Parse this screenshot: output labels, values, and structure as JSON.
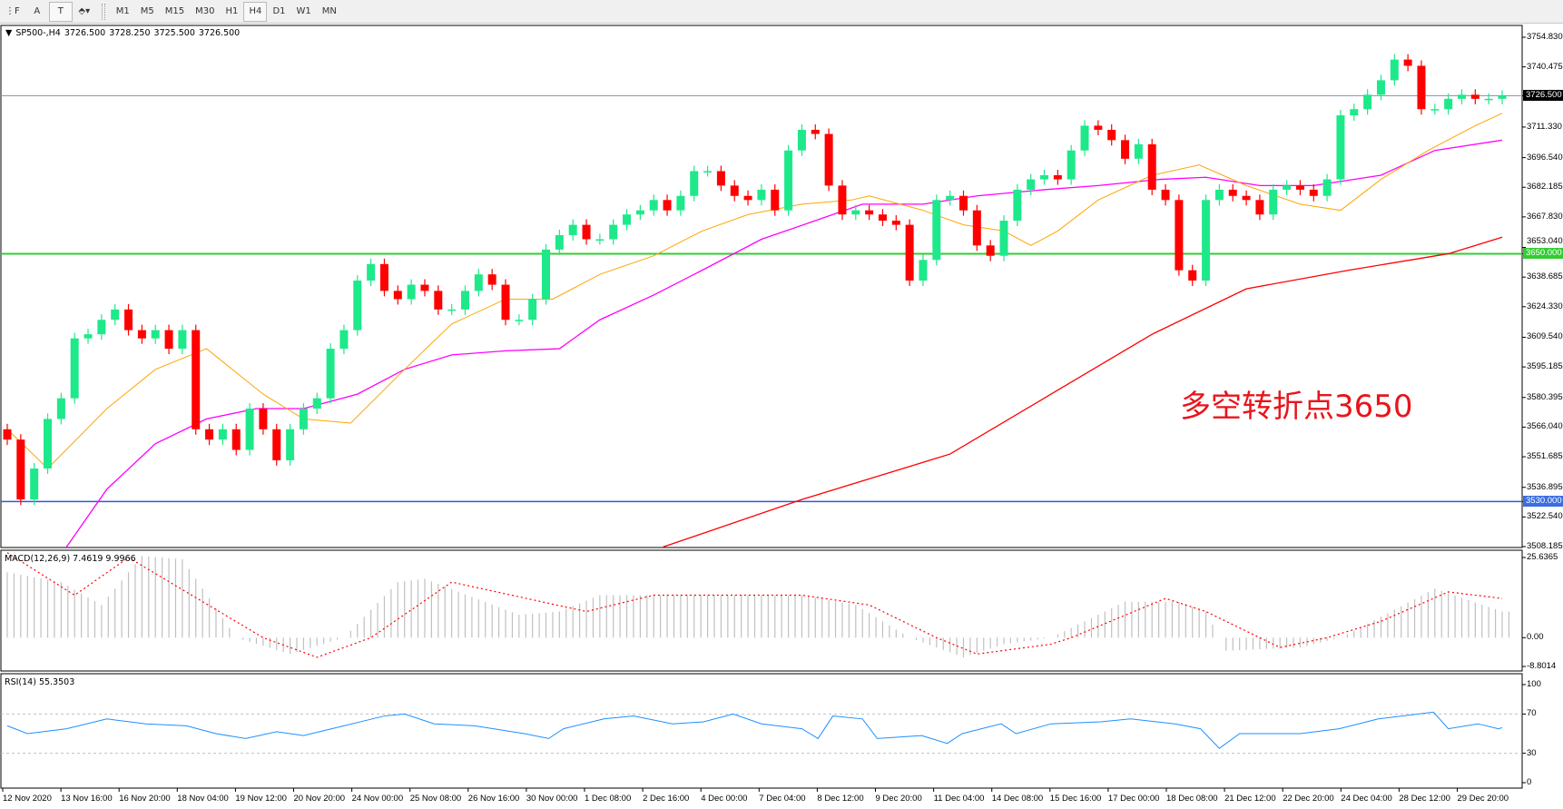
{
  "toolbar": {
    "tools": [
      {
        "icon": "period-separator-icon",
        "label": "⋮F"
      },
      {
        "icon": "text-icon",
        "label": "A"
      },
      {
        "icon": "text-label-icon",
        "label": "T"
      },
      {
        "icon": "arrows-icon",
        "label": "⬘▾"
      }
    ],
    "timeframes": [
      "M1",
      "M5",
      "M15",
      "M30",
      "H1",
      "H4",
      "D1",
      "W1",
      "MN"
    ],
    "active_timeframe": "H4"
  },
  "legend": {
    "symbol": "SP500-,H4",
    "open": "3726.500",
    "high": "3728.250",
    "low": "3725.500",
    "close": "3726.500"
  },
  "annotation": "多空转折点3650",
  "colors": {
    "bull": "#1de98b",
    "bear": "#ff0000",
    "ma_fast": "#ffa500",
    "ma_mid": "#ff00ff",
    "ma_slow": "#ff0000",
    "support_line": "#33cc33",
    "lower_line": "#3355dd",
    "price_line": "#8090a8",
    "macd_hist": "#c0c0c0",
    "macd_signal": "#ff0000",
    "rsi": "#1e90ff"
  },
  "price_axis": {
    "ticks": [
      "3754.830",
      "3740.475",
      "3711.330",
      "3696.540",
      "3682.185",
      "3667.830",
      "3653.040",
      "3638.685",
      "3624.330",
      "3609.540",
      "3595.185",
      "3580.395",
      "3566.040",
      "3551.685",
      "3536.895",
      "3522.540",
      "3508.185"
    ],
    "current": "3726.500",
    "support": "3650.000",
    "lower": "3530.000"
  },
  "time_axis": [
    "12 Nov 2020",
    "13 Nov 16:00",
    "16 Nov 20:00",
    "18 Nov 04:00",
    "19 Nov 12:00",
    "20 Nov 20:00",
    "24 Nov 00:00",
    "25 Nov 08:00",
    "26 Nov 16:00",
    "30 Nov 00:00",
    "1 Dec 08:00",
    "2 Dec 16:00",
    "4 Dec 00:00",
    "7 Dec 04:00",
    "8 Dec 12:00",
    "9 Dec 20:00",
    "11 Dec 04:00",
    "14 Dec 08:00",
    "15 Dec 16:00",
    "17 Dec 00:00",
    "18 Dec 08:00",
    "21 Dec 12:00",
    "22 Dec 20:00",
    "24 Dec 04:00",
    "28 Dec 12:00",
    "29 Dec 20:00"
  ],
  "chart_data": {
    "type": "candlestick",
    "ylim": [
      3508.185,
      3754.83
    ],
    "first_open": 3565,
    "close": [
      3560,
      3531,
      3546,
      3570,
      3580,
      3609,
      3611,
      3618,
      3623,
      3613,
      3609,
      3613,
      3604,
      3613,
      3565,
      3560,
      3565,
      3555,
      3575,
      3565,
      3550,
      3565,
      3575,
      3580,
      3604,
      3613,
      3637,
      3645,
      3632,
      3628,
      3635,
      3632,
      3623,
      3623,
      3632,
      3640,
      3635,
      3618,
      3618,
      3628,
      3652,
      3659,
      3664,
      3657,
      3657,
      3664,
      3669,
      3671,
      3676,
      3671,
      3678,
      3690,
      3690,
      3683,
      3678,
      3676,
      3681,
      3671,
      3700,
      3710,
      3708,
      3683,
      3669,
      3671,
      3669,
      3666,
      3664,
      3637,
      3647,
      3676,
      3678,
      3671,
      3654,
      3649,
      3666,
      3681,
      3686,
      3688,
      3686,
      3700,
      3712,
      3710,
      3705,
      3696,
      3703,
      3681,
      3676,
      3642,
      3637,
      3676,
      3681,
      3678,
      3676,
      3669,
      3681,
      3683,
      3681,
      3678,
      3686,
      3717,
      3720,
      3727,
      3734,
      3744,
      3741,
      3720,
      3720,
      3725,
      3727,
      3725,
      3725,
      3726.5
    ],
    "ma_fast": [
      [
        0,
        3565
      ],
      [
        3,
        3546
      ],
      [
        7.4,
        3575
      ],
      [
        11,
        3594
      ],
      [
        14.8,
        3604
      ],
      [
        19,
        3582
      ],
      [
        22,
        3570
      ],
      [
        25.5,
        3568
      ],
      [
        29.5,
        3594
      ],
      [
        33,
        3616
      ],
      [
        37,
        3628
      ],
      [
        40.5,
        3628
      ],
      [
        44,
        3640
      ],
      [
        48,
        3649
      ],
      [
        51.6,
        3661
      ],
      [
        55,
        3669
      ],
      [
        59,
        3674
      ],
      [
        62.7,
        3676
      ],
      [
        64,
        3678
      ],
      [
        68,
        3671
      ],
      [
        71,
        3664
      ],
      [
        74,
        3661
      ],
      [
        76,
        3654
      ],
      [
        78,
        3661
      ],
      [
        81,
        3676
      ],
      [
        85,
        3688
      ],
      [
        88.5,
        3693
      ],
      [
        92,
        3683
      ],
      [
        96,
        3674
      ],
      [
        99,
        3671
      ],
      [
        102,
        3686
      ],
      [
        105.5,
        3700
      ],
      [
        109,
        3712
      ],
      [
        111,
        3718
      ]
    ],
    "ma_mid": [
      [
        4.4,
        3508
      ],
      [
        7.4,
        3536
      ],
      [
        11,
        3558
      ],
      [
        14.8,
        3570
      ],
      [
        18.5,
        3575
      ],
      [
        22,
        3575
      ],
      [
        26,
        3582
      ],
      [
        29.5,
        3594
      ],
      [
        33,
        3601
      ],
      [
        37,
        3603
      ],
      [
        41,
        3604
      ],
      [
        44,
        3618
      ],
      [
        48,
        3630
      ],
      [
        51.6,
        3642
      ],
      [
        56,
        3657
      ],
      [
        60,
        3666
      ],
      [
        63.5,
        3674
      ],
      [
        68,
        3674
      ],
      [
        72,
        3678
      ],
      [
        77,
        3681
      ],
      [
        81,
        3683
      ],
      [
        85.6,
        3686
      ],
      [
        89,
        3687
      ],
      [
        93,
        3683
      ],
      [
        97,
        3683
      ],
      [
        102,
        3688
      ],
      [
        106,
        3700
      ],
      [
        111,
        3705
      ]
    ],
    "ma_slow": [
      [
        48.7,
        3508
      ],
      [
        59,
        3531
      ],
      [
        70,
        3553
      ],
      [
        77.5,
        3582
      ],
      [
        85,
        3611
      ],
      [
        92,
        3633
      ],
      [
        99.6,
        3642
      ],
      [
        107,
        3650
      ],
      [
        111,
        3658
      ]
    ],
    "hlines": [
      3726.5,
      3650,
      3530
    ]
  },
  "macd": {
    "label": "MACD(12,26,9) 7.4619 9.9966",
    "axis": [
      "25.6365",
      "0.00",
      "-8.8014"
    ],
    "range": [
      -8.8014,
      25.6365
    ],
    "histogram": [
      [
        0,
        20
      ],
      [
        4,
        17
      ],
      [
        7,
        10
      ],
      [
        10,
        25
      ],
      [
        13,
        24
      ],
      [
        17,
        0
      ],
      [
        21,
        -5
      ],
      [
        25,
        0
      ],
      [
        29,
        17
      ],
      [
        31,
        18
      ],
      [
        38,
        7
      ],
      [
        41,
        8
      ],
      [
        44,
        13
      ],
      [
        59,
        13
      ],
      [
        63,
        10
      ],
      [
        65,
        5
      ],
      [
        67,
        0
      ],
      [
        71,
        -6
      ],
      [
        74,
        -2
      ],
      [
        77.5,
        0
      ],
      [
        83,
        11
      ],
      [
        87,
        11
      ],
      [
        89,
        8
      ],
      [
        90.5,
        -4
      ],
      [
        96,
        -3
      ],
      [
        99,
        0
      ],
      [
        106,
        15
      ],
      [
        111,
        8
      ]
    ],
    "signal": [
      [
        0,
        26
      ],
      [
        5,
        13
      ],
      [
        9,
        24.5
      ],
      [
        19,
        0
      ],
      [
        23,
        -6
      ],
      [
        27,
        0
      ],
      [
        33,
        17
      ],
      [
        43,
        8
      ],
      [
        48,
        13
      ],
      [
        59,
        13
      ],
      [
        64,
        10
      ],
      [
        69,
        0
      ],
      [
        72,
        -5
      ],
      [
        77.5,
        -2
      ],
      [
        79,
        0
      ],
      [
        86,
        12
      ],
      [
        89,
        8
      ],
      [
        94.5,
        -3
      ],
      [
        98,
        0
      ],
      [
        102,
        5
      ],
      [
        107,
        14
      ],
      [
        111,
        12
      ]
    ]
  },
  "rsi": {
    "label": "RSI(14) 55.3503",
    "axis": [
      "100",
      "70",
      "30",
      "0"
    ],
    "levels": [
      70,
      30
    ],
    "line": [
      [
        0,
        58
      ],
      [
        1.5,
        50
      ],
      [
        4.4,
        55
      ],
      [
        7.4,
        65
      ],
      [
        10.3,
        60
      ],
      [
        13.3,
        58
      ],
      [
        15.5,
        50
      ],
      [
        17.7,
        45
      ],
      [
        20,
        52
      ],
      [
        22,
        48
      ],
      [
        25,
        58
      ],
      [
        28,
        68
      ],
      [
        29.5,
        70
      ],
      [
        31.7,
        60
      ],
      [
        34.7,
        58
      ],
      [
        38.4,
        50
      ],
      [
        40.2,
        45
      ],
      [
        41.3,
        55
      ],
      [
        44.3,
        65
      ],
      [
        46.5,
        68
      ],
      [
        49.4,
        60
      ],
      [
        51.7,
        62
      ],
      [
        53.9,
        70
      ],
      [
        56,
        60
      ],
      [
        59,
        55
      ],
      [
        60.2,
        45
      ],
      [
        61.3,
        68
      ],
      [
        63.5,
        65
      ],
      [
        64.6,
        45
      ],
      [
        67.9,
        48
      ],
      [
        69.8,
        40
      ],
      [
        70.9,
        50
      ],
      [
        73.8,
        60
      ],
      [
        74.9,
        50
      ],
      [
        77.5,
        60
      ],
      [
        81.2,
        62
      ],
      [
        83.4,
        65
      ],
      [
        86.7,
        60
      ],
      [
        88.6,
        55
      ],
      [
        90,
        35
      ],
      [
        91.5,
        50
      ],
      [
        96,
        50
      ],
      [
        98.9,
        55
      ],
      [
        101.8,
        65
      ],
      [
        105.9,
        72
      ],
      [
        107,
        55
      ],
      [
        109.2,
        60
      ],
      [
        110.7,
        55
      ],
      [
        111,
        56
      ]
    ]
  }
}
